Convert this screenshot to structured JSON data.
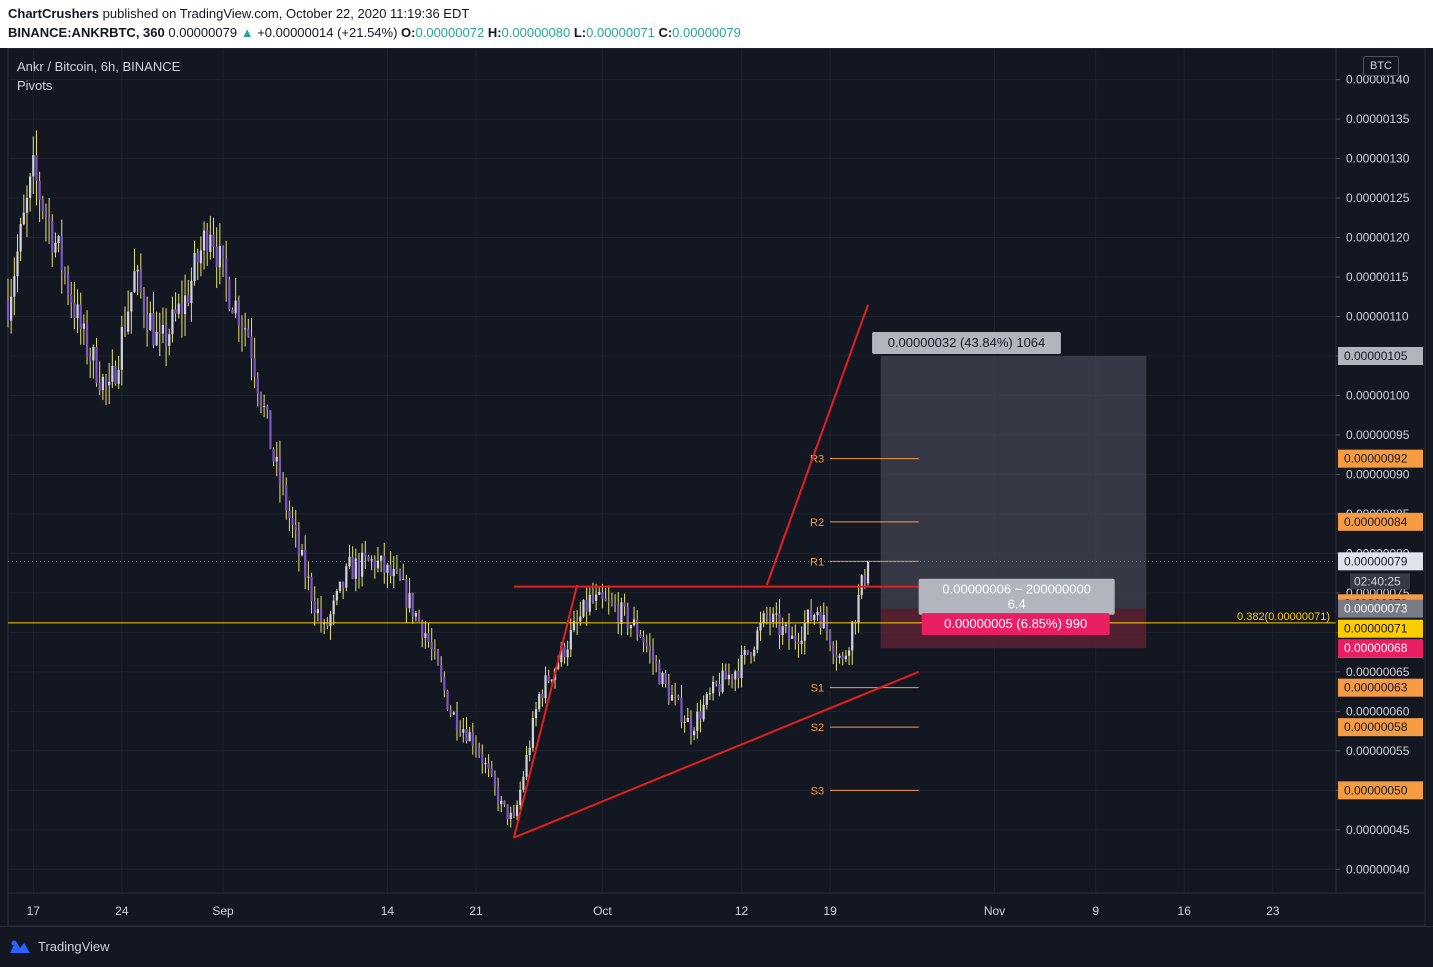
{
  "header": {
    "author": "ChartCrushers",
    "published_text": "published on TradingView.com, October 22, 2020 11:19:36 EDT",
    "symbol": "BINANCE:ANKRBTC, 360",
    "last": "0.00000079",
    "arrow": "▲",
    "change": "+0.00000014 (+21.54%)",
    "o_label": "O:",
    "o_value": "0.00000072",
    "h_label": "H:",
    "h_value": "0.00000080",
    "l_label": "L:",
    "l_value": "0.00000071",
    "c_label": "C:",
    "c_value": "0.00000079"
  },
  "legend": {
    "title": "Ankr / Bitcoin, 6h, BINANCE",
    "indicator": "Pivots"
  },
  "currency": "BTC",
  "footer": {
    "brand": "TradingView"
  },
  "colors": {
    "background": "#131722",
    "bull_candle": "#d1d4dc",
    "bear_candle": "#7e57c2",
    "wick": "#e8e46a",
    "trendline": "#e61e1e",
    "pivot": "#f59b42",
    "fib": "#ffcc00",
    "target_zone": "#434651",
    "stop_zone": "#5c2234",
    "stop_label": "#e91e63"
  },
  "chart_data": {
    "type": "candlestick",
    "ylim": [
      3.7e-07,
      1.44e-06
    ],
    "y_ticks": [
      "0.00000140",
      "0.00000135",
      "0.00000130",
      "0.00000125",
      "0.00000120",
      "0.00000115",
      "0.00000110",
      "0.00000105",
      "0.00000100",
      "0.00000095",
      "0.00000090",
      "0.00000085",
      "0.00000080",
      "0.00000075",
      "0.00000070",
      "0.00000065",
      "0.00000060",
      "0.00000055",
      "0.00000050",
      "0.00000045",
      "0.00000040"
    ],
    "x_ticks": [
      "17",
      "24",
      "Sep",
      "14",
      "21",
      "Oct",
      "12",
      "19",
      "Nov",
      "9",
      "16",
      "23"
    ],
    "x_tick_dates": [
      "2020-08-17",
      "2020-08-24",
      "2020-09-01",
      "2020-09-14",
      "2020-09-21",
      "2020-10-01",
      "2020-10-12",
      "2020-10-19",
      "2020-11-01",
      "2020-11-09",
      "2020-11-16",
      "2020-11-23"
    ],
    "x_range": [
      "2020-08-15",
      "2020-11-28"
    ],
    "price_path": [
      [
        "2020-08-15",
        1.12e-06
      ],
      [
        "2020-08-17",
        1.28e-06
      ],
      [
        "2020-08-19",
        1.18e-06
      ],
      [
        "2020-08-21",
        1.07e-06
      ],
      [
        "2020-08-23",
        1e-06
      ],
      [
        "2020-08-25",
        1.15e-06
      ],
      [
        "2020-08-27",
        1.06e-06
      ],
      [
        "2020-08-29",
        1.12e-06
      ],
      [
        "2020-08-31",
        1.22e-06
      ],
      [
        "2020-09-01",
        1.15e-06
      ],
      [
        "2020-09-03",
        1.08e-06
      ],
      [
        "2020-09-05",
        9.2e-07
      ],
      [
        "2020-09-07",
        8e-07
      ],
      [
        "2020-09-09",
        7e-07
      ],
      [
        "2020-09-11",
        7.8e-07
      ],
      [
        "2020-09-13",
        7.9e-07
      ],
      [
        "2020-09-15",
        7.6e-07
      ],
      [
        "2020-09-17",
        7e-07
      ],
      [
        "2020-09-19",
        6e-07
      ],
      [
        "2020-09-21",
        5.6e-07
      ],
      [
        "2020-09-23",
        4.8e-07
      ],
      [
        "2020-09-24",
        4.6e-07
      ],
      [
        "2020-09-26",
        6.2e-07
      ],
      [
        "2020-09-28",
        6.8e-07
      ],
      [
        "2020-09-30",
        7.4e-07
      ],
      [
        "2020-10-02",
        7.3e-07
      ],
      [
        "2020-10-04",
        7e-07
      ],
      [
        "2020-10-06",
        6.3e-07
      ],
      [
        "2020-10-08",
        5.8e-07
      ],
      [
        "2020-10-10",
        6.3e-07
      ],
      [
        "2020-10-12",
        6.6e-07
      ],
      [
        "2020-10-14",
        7.2e-07
      ],
      [
        "2020-10-16",
        6.9e-07
      ],
      [
        "2020-10-18",
        7.3e-07
      ],
      [
        "2020-10-20",
        6.6e-07
      ],
      [
        "2020-10-22",
        7.9e-07
      ]
    ],
    "last_close": 7.9e-07,
    "pivots": [
      {
        "name": "R3",
        "value": 9.2e-07,
        "label": "0.00000092"
      },
      {
        "name": "R2",
        "value": 8.4e-07,
        "label": "0.00000084"
      },
      {
        "name": "R1",
        "value": 7.9e-07,
        "label": "0.00000079"
      },
      {
        "name": "S1",
        "value": 6.3e-07,
        "label": "0.00000063"
      },
      {
        "name": "S2",
        "value": 5.8e-07,
        "label": "0.00000058"
      },
      {
        "name": "S3",
        "value": 5e-07,
        "label": "0.00000050"
      }
    ],
    "pivot_period": [
      "2020-10-19",
      "2020-10-26"
    ],
    "fib_level": {
      "label": "0.382(0.00000071)",
      "value": 7.12e-07,
      "tag": "0.00000071"
    },
    "position": {
      "entry": 7.3e-07,
      "target": 1.05e-06,
      "stop": 6.8e-07,
      "start": "2020-10-23",
      "end": "2020-11-13",
      "target_label": "0.00000032 (43.84%) 1064",
      "ratio_label": "0.00000006 ~ 200000000",
      "ratio_value": "6.4",
      "stop_label": "0.00000005 (6.85%) 990",
      "target_tag": "0.00000105",
      "entry_tag": "0.00000073",
      "stop_tag": "0.00000068"
    },
    "close_tag": "0.00000079",
    "countdown": "02:40:25",
    "extra_tag": "0.00000071",
    "trendlines": [
      {
        "name": "resistance",
        "from": [
          "2020-09-24",
          7.58e-07
        ],
        "to": [
          "2020-10-26",
          7.58e-07
        ]
      },
      {
        "name": "rising-wedge-left",
        "from": [
          "2020-09-24",
          4.4e-07
        ],
        "to": [
          "2020-09-29",
          7.6e-07
        ]
      },
      {
        "name": "support",
        "from": [
          "2020-09-24",
          4.4e-07
        ],
        "to": [
          "2020-10-26",
          6.5e-07
        ]
      },
      {
        "name": "breakout-projection",
        "from": [
          "2020-10-14",
          7.6e-07
        ],
        "to": [
          "2020-10-22",
          1.115e-06
        ]
      }
    ]
  }
}
